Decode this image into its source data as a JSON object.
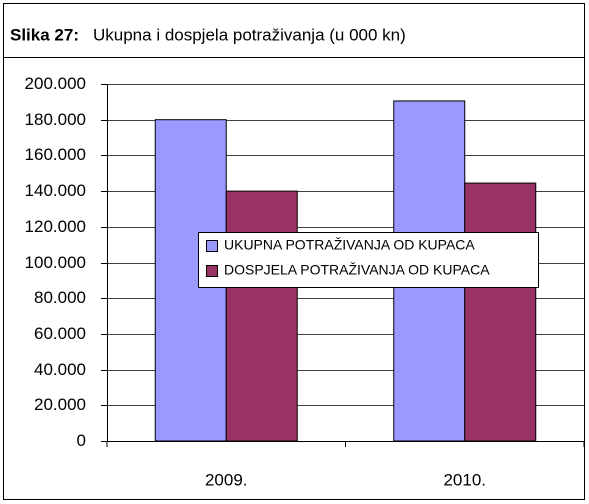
{
  "chart_data": {
    "type": "bar",
    "title_label": "Slika 27:",
    "title": "Ukupna i dospjela potraživanja (u 000 kn)",
    "categories": [
      "2009.",
      "2010."
    ],
    "series": [
      {
        "name": "UKUPNA POTRAŽIVANJA OD KUPACA",
        "color": "#9999ff",
        "values": [
          180000,
          190500
        ]
      },
      {
        "name": "DOSPJELA POTRAŽIVANJA OD KUPACA",
        "color": "#993366",
        "values": [
          140000,
          144500
        ]
      }
    ],
    "ylim": [
      0,
      200000
    ],
    "yticks": [
      0,
      {
        "value": 20000,
        "label": "20.000"
      },
      {
        "value": 40000,
        "label": "40.000"
      },
      {
        "value": 60000,
        "label": "60.000"
      },
      {
        "value": 80000,
        "label": "80.000"
      },
      {
        "value": 100000,
        "label": "100.000"
      },
      {
        "value": 120000,
        "label": "120.000"
      },
      {
        "value": 140000,
        "label": "140.000"
      },
      {
        "value": 160000,
        "label": "160.000"
      },
      {
        "value": 180000,
        "label": "180.000"
      },
      {
        "value": 200000,
        "label": "200.000"
      }
    ],
    "grid": true
  }
}
